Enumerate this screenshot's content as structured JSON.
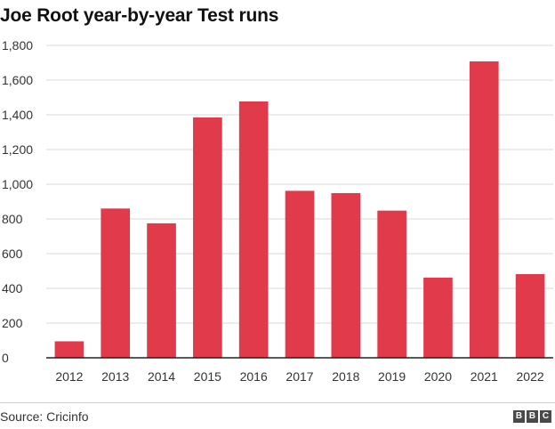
{
  "title": "Joe Root year-by-year Test runs",
  "source": "Source: Cricinfo",
  "logo": [
    "B",
    "B",
    "C"
  ],
  "colors": {
    "bar": "#e03a4b",
    "axis": "#222222",
    "grid": "#d9d9d9"
  },
  "chart_data": {
    "type": "bar",
    "title": "Joe Root year-by-year Test runs",
    "xlabel": "",
    "ylabel": "",
    "categories": [
      "2012",
      "2013",
      "2014",
      "2015",
      "2016",
      "2017",
      "2018",
      "2019",
      "2020",
      "2021",
      "2022"
    ],
    "values": [
      95,
      860,
      775,
      1385,
      1477,
      962,
      949,
      848,
      462,
      1708,
      482
    ],
    "ylim": [
      0,
      1800
    ],
    "yticks": [
      0,
      200,
      400,
      600,
      800,
      1000,
      1200,
      1400,
      1600,
      1800
    ],
    "ytick_labels": [
      "0",
      "200",
      "400",
      "600",
      "800",
      "1,000",
      "1,200",
      "1,400",
      "1,600",
      "1,800"
    ],
    "grid": true,
    "legend": "none"
  }
}
